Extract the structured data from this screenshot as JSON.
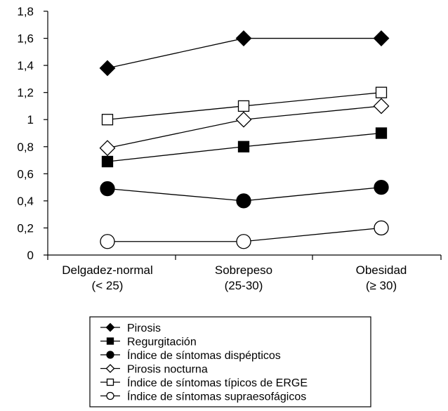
{
  "chart_data": {
    "type": "line",
    "categories": [
      [
        "Delgadez-normal",
        "(< 25)"
      ],
      [
        "Sobrepeso",
        "(25-30)"
      ],
      [
        "Obesidad",
        "(≥ 30)"
      ]
    ],
    "y_ticks": [
      "0",
      "0,2",
      "0,4",
      "0,6",
      "0,8",
      "1",
      "1,2",
      "1,4",
      "1,6",
      "1,8"
    ],
    "ylim": [
      0,
      1.8
    ],
    "grid": false,
    "legend_position": "bottom",
    "series": [
      {
        "name": "Pirosis",
        "marker": "diamond-filled",
        "values": [
          1.38,
          1.6,
          1.6
        ]
      },
      {
        "name": "Regurgitación",
        "marker": "square-filled",
        "values": [
          0.69,
          0.8,
          0.9
        ]
      },
      {
        "name": "Índice de síntomas dispépticos",
        "marker": "circle-filled",
        "values": [
          0.49,
          0.4,
          0.5
        ]
      },
      {
        "name": "Pirosis nocturna",
        "marker": "diamond-open",
        "values": [
          0.79,
          1.0,
          1.1
        ]
      },
      {
        "name": "Índice de síntomas típicos de ERGE",
        "marker": "square-open",
        "values": [
          1.0,
          1.1,
          1.2
        ]
      },
      {
        "name": "Índice de síntomas supraesofágicos",
        "marker": "circle-open",
        "values": [
          0.1,
          0.1,
          0.2
        ]
      }
    ],
    "colors": {
      "line": "#000000",
      "background": "#ffffff"
    }
  }
}
